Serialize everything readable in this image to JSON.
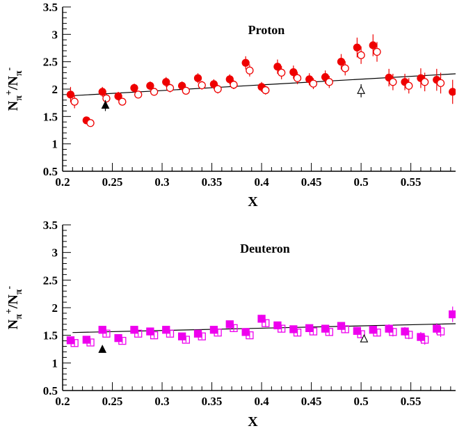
{
  "chart_data": [
    {
      "type": "scatter",
      "title": "Proton",
      "xlabel": "X",
      "ylabel": "N_π+/N_π-",
      "ylabel_parts": {
        "n1": "N",
        "s1": "π",
        "p1": "+",
        "slash": "/N",
        "s2": "π",
        "p2": "-"
      },
      "xlim": [
        0.2,
        0.595
      ],
      "ylim": [
        0.5,
        3.5
      ],
      "xticks": [
        "0.2",
        "0.25",
        "0.3",
        "0.35",
        "0.4",
        "0.45",
        "0.5",
        "0.55"
      ],
      "yticks": [
        "0.5",
        "1",
        "1.5",
        "2",
        "2.5",
        "3",
        "3.5"
      ],
      "marker_color": "#ee0000",
      "series": [
        {
          "marker": "filled-circle",
          "x": [
            0.208,
            0.224,
            0.24,
            0.256,
            0.272,
            0.288,
            0.304,
            0.32,
            0.336,
            0.352,
            0.368,
            0.384,
            0.4,
            0.416,
            0.432,
            0.448,
            0.464,
            0.48,
            0.496,
            0.512,
            0.528,
            0.544,
            0.56,
            0.576,
            0.592
          ],
          "y": [
            1.9,
            1.43,
            1.95,
            1.87,
            2.02,
            2.06,
            2.13,
            2.06,
            2.2,
            2.09,
            2.18,
            2.48,
            2.04,
            2.41,
            2.31,
            2.18,
            2.22,
            2.5,
            2.76,
            2.8,
            2.21,
            2.13,
            2.2,
            2.17,
            1.95
          ],
          "err": [
            0.14,
            0.05,
            0.09,
            0.08,
            0.08,
            0.08,
            0.09,
            0.08,
            0.09,
            0.09,
            0.09,
            0.12,
            0.09,
            0.13,
            0.12,
            0.11,
            0.12,
            0.14,
            0.18,
            0.2,
            0.16,
            0.15,
            0.18,
            0.2,
            0.22
          ]
        },
        {
          "marker": "open-circle",
          "x": [
            0.212,
            0.228,
            0.244,
            0.26,
            0.276,
            0.292,
            0.308,
            0.324,
            0.34,
            0.356,
            0.372,
            0.388,
            0.404,
            0.42,
            0.436,
            0.452,
            0.468,
            0.484,
            0.5,
            0.516,
            0.532,
            0.548,
            0.564,
            0.58
          ],
          "y": [
            1.77,
            1.38,
            1.83,
            1.77,
            1.9,
            1.95,
            2.02,
            1.97,
            2.07,
            2.0,
            2.08,
            2.34,
            1.98,
            2.3,
            2.2,
            2.1,
            2.13,
            2.38,
            2.62,
            2.68,
            2.13,
            2.06,
            2.13,
            2.11
          ],
          "err": [
            0.12,
            0.05,
            0.08,
            0.07,
            0.07,
            0.07,
            0.08,
            0.07,
            0.08,
            0.08,
            0.08,
            0.11,
            0.08,
            0.12,
            0.11,
            0.1,
            0.11,
            0.13,
            0.16,
            0.18,
            0.15,
            0.14,
            0.17,
            0.19
          ]
        },
        {
          "marker": "filled-triangle",
          "x": [
            0.243
          ],
          "y": [
            1.7
          ],
          "err": [
            0.1
          ]
        },
        {
          "marker": "open-triangle",
          "x": [
            0.5
          ],
          "y": [
            1.97
          ],
          "err": [
            0.12
          ]
        }
      ],
      "curve": {
        "x": [
          0.21,
          0.595
        ],
        "y": [
          1.88,
          2.28
        ]
      }
    },
    {
      "type": "scatter",
      "title": "Deuteron",
      "xlabel": "X",
      "ylabel": "N_π+/N_π-",
      "ylabel_parts": {
        "n1": "N",
        "s1": "π",
        "p1": "+",
        "slash": "/N",
        "s2": "π",
        "p2": "-"
      },
      "xlim": [
        0.2,
        0.595
      ],
      "ylim": [
        0.5,
        3.5
      ],
      "xticks": [
        "0.2",
        "0.25",
        "0.3",
        "0.35",
        "0.4",
        "0.45",
        "0.5",
        "0.55"
      ],
      "yticks": [
        "0.5",
        "1",
        "1.5",
        "2",
        "2.5",
        "3",
        "3.5"
      ],
      "marker_color": "#ee00ee",
      "series": [
        {
          "marker": "filled-square",
          "x": [
            0.208,
            0.224,
            0.24,
            0.256,
            0.272,
            0.288,
            0.304,
            0.32,
            0.336,
            0.352,
            0.368,
            0.384,
            0.4,
            0.416,
            0.432,
            0.448,
            0.464,
            0.48,
            0.496,
            0.512,
            0.528,
            0.544,
            0.56,
            0.576,
            0.592
          ],
          "y": [
            1.41,
            1.42,
            1.6,
            1.45,
            1.6,
            1.57,
            1.6,
            1.48,
            1.53,
            1.6,
            1.7,
            1.56,
            1.8,
            1.68,
            1.61,
            1.63,
            1.62,
            1.67,
            1.58,
            1.6,
            1.62,
            1.57,
            1.47,
            1.62,
            1.88
          ],
          "err": [
            0.06,
            0.05,
            0.05,
            0.05,
            0.05,
            0.05,
            0.05,
            0.05,
            0.05,
            0.05,
            0.06,
            0.05,
            0.07,
            0.06,
            0.06,
            0.06,
            0.06,
            0.07,
            0.07,
            0.07,
            0.08,
            0.08,
            0.09,
            0.1,
            0.14
          ]
        },
        {
          "marker": "open-square",
          "x": [
            0.212,
            0.228,
            0.244,
            0.26,
            0.276,
            0.292,
            0.308,
            0.324,
            0.34,
            0.356,
            0.372,
            0.388,
            0.404,
            0.42,
            0.436,
            0.452,
            0.468,
            0.484,
            0.5,
            0.516,
            0.532,
            0.548,
            0.564,
            0.58
          ],
          "y": [
            1.36,
            1.37,
            1.53,
            1.4,
            1.53,
            1.5,
            1.53,
            1.42,
            1.48,
            1.55,
            1.63,
            1.5,
            1.72,
            1.62,
            1.55,
            1.57,
            1.56,
            1.61,
            1.52,
            1.55,
            1.56,
            1.51,
            1.42,
            1.57
          ],
          "err": [
            0.06,
            0.05,
            0.05,
            0.05,
            0.05,
            0.05,
            0.05,
            0.05,
            0.05,
            0.05,
            0.06,
            0.05,
            0.07,
            0.06,
            0.06,
            0.06,
            0.06,
            0.07,
            0.07,
            0.07,
            0.08,
            0.08,
            0.09,
            0.1
          ]
        },
        {
          "marker": "filled-triangle",
          "x": [
            0.24
          ],
          "y": [
            1.24
          ],
          "err": [
            0
          ]
        },
        {
          "marker": "open-triangle",
          "x": [
            0.503
          ],
          "y": [
            1.43
          ],
          "err": [
            0
          ]
        }
      ],
      "curve": {
        "x": [
          0.21,
          0.595
        ],
        "y": [
          1.55,
          1.71
        ]
      }
    }
  ]
}
